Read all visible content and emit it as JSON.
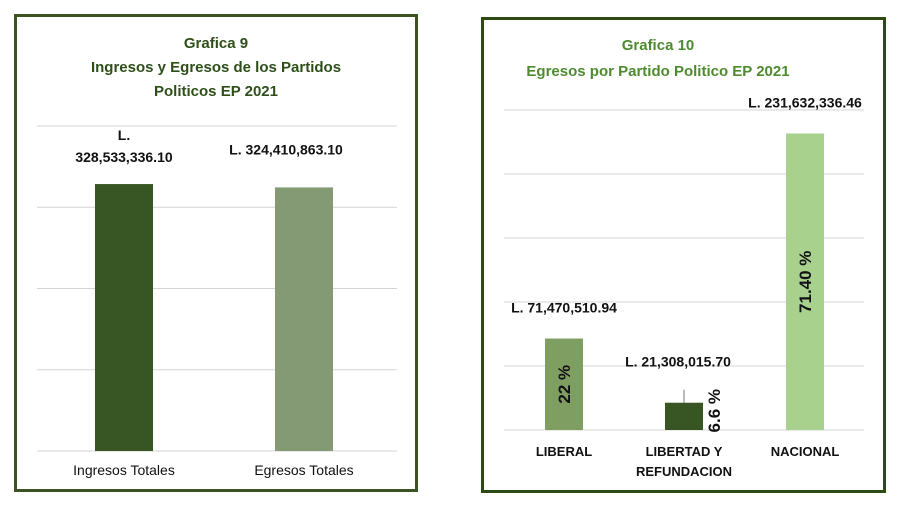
{
  "chart_data": [
    {
      "type": "bar",
      "title": "Grafica 9",
      "subtitle": [
        "Ingresos y Egresos de los Partidos",
        "Politicos EP 2021"
      ],
      "categories": [
        "Ingresos Totales",
        "Egresos Totales"
      ],
      "values": [
        328533336.1,
        324410863.1
      ],
      "value_labels": [
        "L. 328,533,336.10",
        "L. 324,410,863.10"
      ],
      "colors": [
        "#375623",
        "#839a75"
      ],
      "title_color": "#2f4f1a",
      "ylim": [
        0,
        400000000
      ],
      "grid": true
    },
    {
      "type": "bar",
      "title": "Grafica 10",
      "subtitle": "Egresos por Partido Politico EP 2021",
      "categories": [
        "LIBERAL",
        "LIBERTAD Y REFUNDACION",
        "NACIONAL"
      ],
      "values": [
        71470510.94,
        21308015.7,
        231632336.46
      ],
      "value_labels": [
        "L. 71,470,510.94",
        "L. 21,308,015.70",
        "L. 231,632,336.46"
      ],
      "percent_labels": [
        "22 %",
        "6.6 %",
        "71.40 %"
      ],
      "colors": [
        "#7f9e62",
        "#375623",
        "#a9d18e"
      ],
      "title_color": "#4e8b2f",
      "ylim": [
        0,
        250000000
      ],
      "grid": true
    }
  ]
}
